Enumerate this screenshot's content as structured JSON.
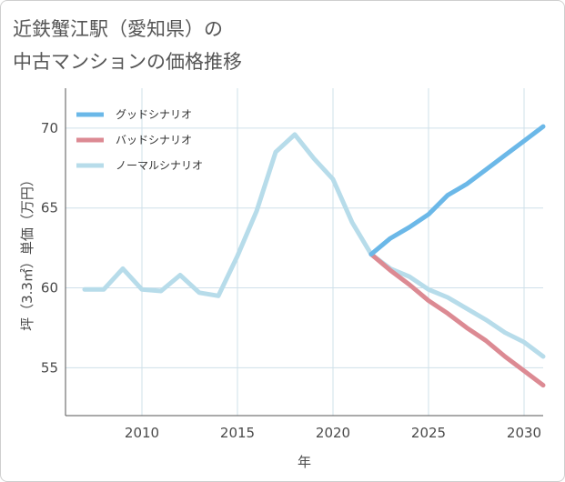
{
  "title": {
    "line1": "近鉄蟹江駅（愛知県）の",
    "line2": "中古マンションの価格推移"
  },
  "chart_data": {
    "type": "line",
    "title": "近鉄蟹江駅（愛知県）の中古マンションの価格推移",
    "xlabel": "年",
    "ylabel": "坪（3.3㎡）単価（万円）",
    "xlim": [
      2006,
      2031
    ],
    "ylim": [
      52,
      72.5
    ],
    "xticks": [
      2010,
      2015,
      2020,
      2025,
      2030
    ],
    "yticks": [
      55,
      60,
      65,
      70
    ],
    "grid": true,
    "legend_position": "top-left",
    "series": [
      {
        "name": "グッドシナリオ",
        "color": "#6bb8e8",
        "x": [
          2022,
          2023,
          2024,
          2025,
          2026,
          2027,
          2028,
          2029,
          2030,
          2031
        ],
        "values": [
          62.1,
          63.1,
          63.8,
          64.6,
          65.8,
          66.5,
          67.4,
          68.3,
          69.2,
          70.1
        ]
      },
      {
        "name": "バッドシナリオ",
        "color": "#dc8a93",
        "x": [
          2022,
          2023,
          2024,
          2025,
          2026,
          2027,
          2028,
          2029,
          2030,
          2031
        ],
        "values": [
          62.1,
          61.1,
          60.2,
          59.2,
          58.4,
          57.5,
          56.7,
          55.7,
          54.8,
          53.9
        ]
      },
      {
        "name": "ノーマルシナリオ",
        "color": "#b7dcea",
        "x": [
          2007,
          2008,
          2009,
          2010,
          2011,
          2012,
          2013,
          2014,
          2015,
          2016,
          2017,
          2018,
          2019,
          2020,
          2021,
          2022,
          2023,
          2024,
          2025,
          2026,
          2027,
          2028,
          2029,
          2030,
          2031
        ],
        "values": [
          59.9,
          59.9,
          61.2,
          59.9,
          59.8,
          60.8,
          59.7,
          59.5,
          62.0,
          64.8,
          68.5,
          69.6,
          68.1,
          66.8,
          64.1,
          62.1,
          61.2,
          60.7,
          59.9,
          59.4,
          58.7,
          58.0,
          57.2,
          56.6,
          55.7
        ]
      }
    ]
  }
}
